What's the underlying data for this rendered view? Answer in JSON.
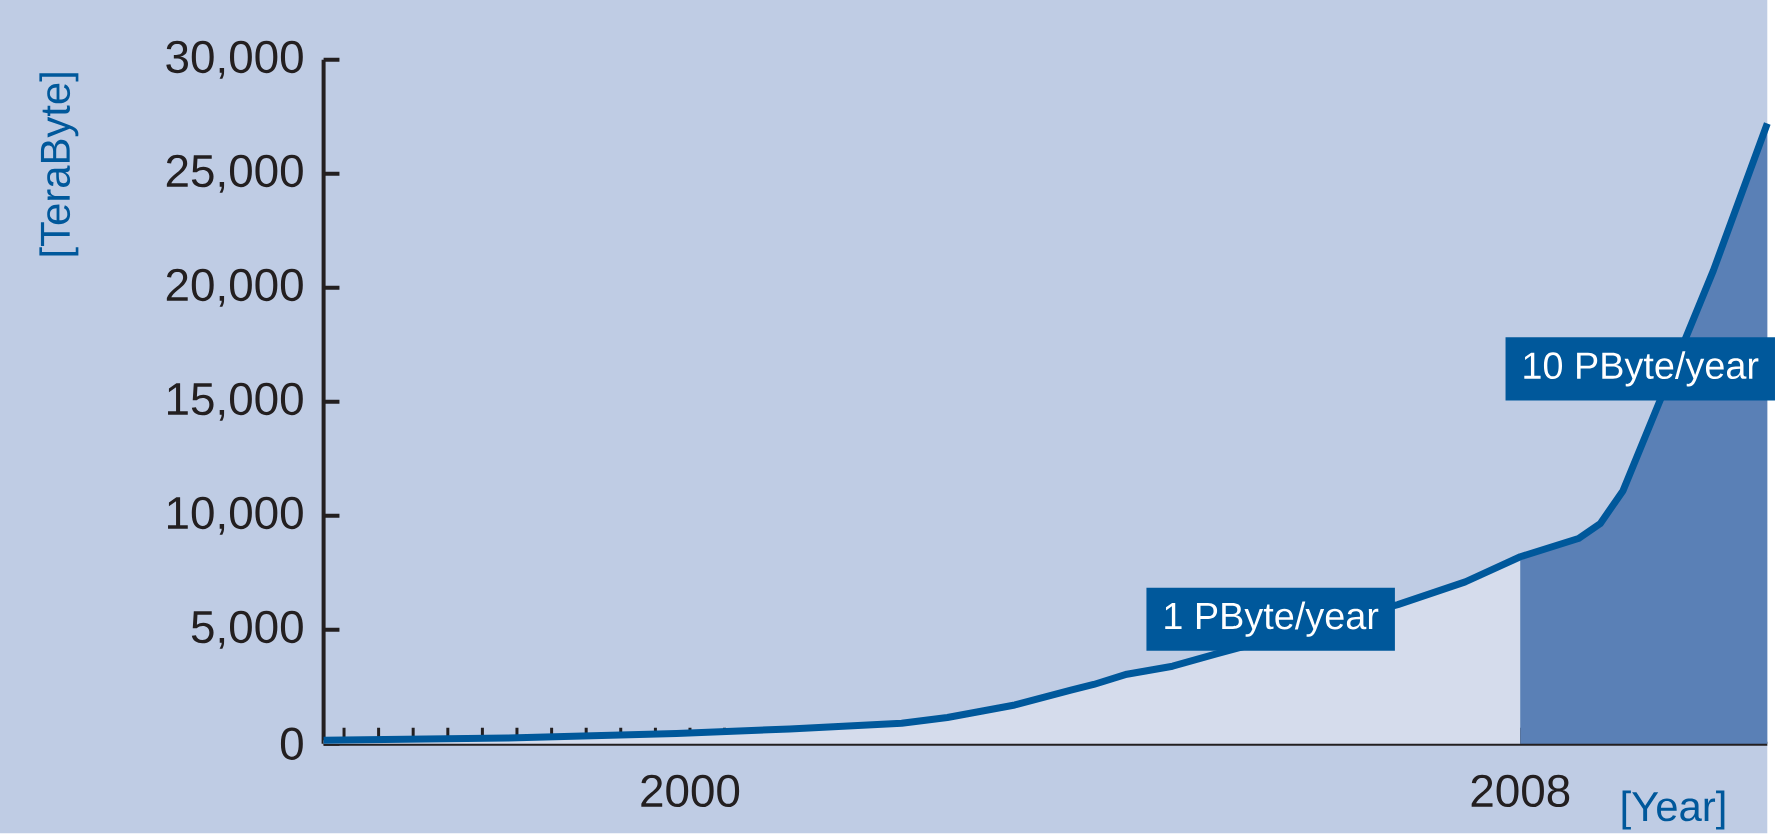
{
  "chart_data": {
    "type": "line",
    "ylabel": "[TeraByte]",
    "xlabel": "[Year]",
    "series": [
      {
        "type": "area",
        "color": "#d5dcec",
        "x": [
          1996.47,
          1998.24,
          1999.87,
          2000.96,
          2002.04,
          2002.48,
          2003.13,
          2003.67,
          2003.89,
          2004.21,
          2004.65,
          2005.08,
          2005.62,
          2006.82,
          2007.47,
          2008.0
        ],
        "values": [
          150,
          250,
          450,
          650,
          900,
          1150,
          1700,
          2350,
          2600,
          3050,
          3400,
          3950,
          null,
          6100,
          7100,
          8200
        ]
      },
      {
        "type": "area",
        "color": "#5a80b6",
        "x": [
          2008.0,
          2008.56,
          2008.77,
          2008.99,
          2009.42,
          2009.86,
          2010.38
        ],
        "values": [
          8200,
          9000,
          9650,
          11100,
          null,
          20750,
          27200
        ]
      },
      {
        "color": "#00589b",
        "x": [
          1996.47,
          1998.24,
          1999.87,
          2000.96,
          2002.04,
          2002.48,
          2003.13,
          2003.67,
          2003.89,
          2004.21,
          2004.65,
          2005.08,
          2005.62,
          2006.82,
          2007.47,
          2008.0,
          2008.56,
          2008.77,
          2008.99,
          2009.42,
          2009.86,
          2010.38
        ],
        "values": [
          150,
          250,
          450,
          650,
          900,
          1150,
          1700,
          2350,
          2600,
          3050,
          3400,
          3950,
          null,
          6100,
          7100,
          8200,
          9000,
          9650,
          11100,
          null,
          20750,
          27200
        ]
      }
    ],
    "xlim": [
      1996.47,
      2010.38
    ],
    "ylim": [
      0,
      30000
    ],
    "yticks": [
      {
        "value": 0,
        "label": "0"
      },
      {
        "value": 5000,
        "label": "5,000"
      },
      {
        "value": 10000,
        "label": "10,000"
      },
      {
        "value": 15000,
        "label": "15,000"
      },
      {
        "value": 20000,
        "label": "20,000"
      },
      {
        "value": 25000,
        "label": "25,000"
      },
      {
        "value": 30000,
        "label": "30,000"
      }
    ],
    "xticks": [
      {
        "value": 1996.667,
        "label": null
      },
      {
        "value": 1997,
        "label": null
      },
      {
        "value": 1997.333,
        "label": null
      },
      {
        "value": 1997.667,
        "label": null
      },
      {
        "value": 1998,
        "label": null
      },
      {
        "value": 1998.333,
        "label": null
      },
      {
        "value": 1998.667,
        "label": null
      },
      {
        "value": 1999,
        "label": null
      },
      {
        "value": 1999.333,
        "label": null
      },
      {
        "value": 1999.667,
        "label": null
      },
      2000,
      {
        "value": 2000.333,
        "label": null
      },
      {
        "value": 2000.667,
        "label": null
      },
      {
        "value": 2001,
        "label": null
      },
      {
        "value": 2001.333,
        "label": null
      },
      {
        "value": 2001.667,
        "label": null
      },
      {
        "value": 2002,
        "label": null
      },
      {
        "value": 2002.333,
        "label": null
      },
      {
        "value": 2002.667,
        "label": null
      },
      {
        "value": 2003,
        "label": null
      },
      {
        "value": 2003.333,
        "label": null
      },
      {
        "value": 2003.667,
        "label": null
      },
      {
        "value": 2004,
        "label": null
      },
      {
        "value": 2004.333,
        "label": null
      },
      {
        "value": 2004.667,
        "label": null
      },
      {
        "value": 2005,
        "label": null
      },
      {
        "value": 2005.333,
        "label": null
      },
      {
        "value": 2005.667,
        "label": null
      },
      {
        "value": 2006,
        "label": null
      },
      {
        "value": 2006.333,
        "label": null
      },
      {
        "value": 2006.667,
        "label": null
      },
      {
        "value": 2007,
        "label": null
      },
      {
        "value": 2007.333,
        "label": null
      },
      {
        "value": 2007.667,
        "label": null
      },
      2008,
      {
        "value": 2008.333,
        "label": null
      },
      {
        "value": 2008.667,
        "label": null
      },
      {
        "value": 2009,
        "label": null
      },
      {
        "value": 2009.333,
        "label": null
      },
      {
        "value": 2009.667,
        "label": null
      },
      {
        "value": 2010,
        "label": null
      },
      {
        "value": 2010.333,
        "label": null
      }
    ],
    "annotations": [
      "1 PByte/year",
      "10 PByte/year"
    ],
    "grid": false,
    "marker": "none",
    "line_style": "solid"
  }
}
